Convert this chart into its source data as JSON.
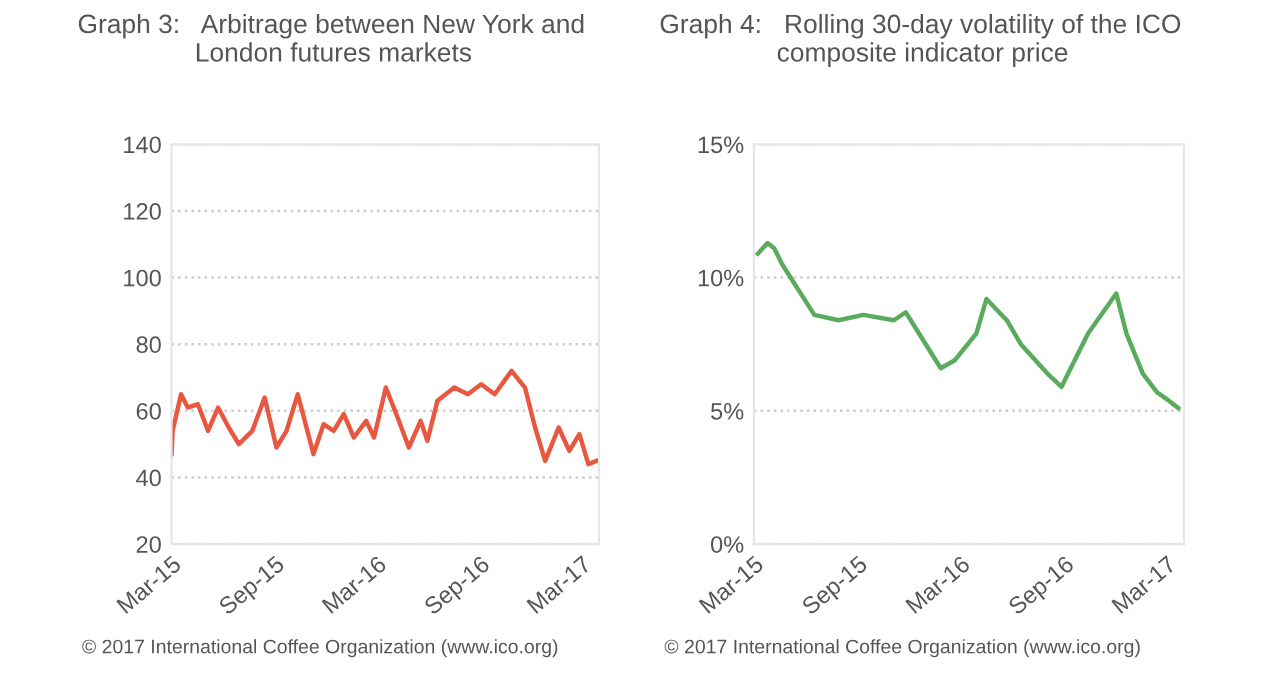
{
  "chart_data": [
    {
      "type": "line",
      "title": "Graph 3:   Arbitrage between New York and\n                London futures markets",
      "annotations": [
        "© 2017 International Coffee Organization (www.ico.org)"
      ],
      "x": [
        "2015-03-01",
        "2015-03-03",
        "2015-03-18",
        "2015-03-30",
        "2015-04-17",
        "2015-05-05",
        "2015-05-23",
        "2015-06-11",
        "2015-06-29",
        "2015-07-23",
        "2015-08-14",
        "2015-09-04",
        "2015-09-22",
        "2015-10-12",
        "2015-11-09",
        "2015-11-27",
        "2015-12-15",
        "2016-01-02",
        "2016-01-20",
        "2016-02-11",
        "2016-02-25",
        "2016-03-17",
        "2016-04-07",
        "2016-04-27",
        "2016-05-18",
        "2016-05-30",
        "2016-06-17",
        "2016-07-17",
        "2016-08-10",
        "2016-09-03",
        "2016-09-27",
        "2016-10-27",
        "2016-11-20",
        "2016-12-08",
        "2016-12-26",
        "2017-01-19",
        "2017-02-07",
        "2017-02-25",
        "2017-03-13",
        "2017-03-28"
      ],
      "series": [
        {
          "color": "#e8573f",
          "values": [
            47,
            54,
            65,
            61,
            62,
            54,
            61,
            55,
            50,
            54,
            64,
            49,
            54,
            65,
            47,
            56,
            54,
            59,
            52,
            57,
            52,
            67,
            58,
            49,
            57,
            51,
            63,
            67,
            65,
            68,
            65,
            72,
            67,
            55,
            45,
            55,
            48,
            53,
            44,
            45
          ]
        }
      ],
      "xlim": [
        "2015-03-01",
        "2017-04-01"
      ],
      "xticks": [
        {
          "value": "2015-03-01",
          "label": "Mar-15"
        },
        {
          "value": "2015-09-01",
          "label": "Sep-15"
        },
        {
          "value": "2016-03-01",
          "label": "Mar-16"
        },
        {
          "value": "2016-09-01",
          "label": "Sep-16"
        },
        {
          "value": "2017-03-01",
          "label": "Mar-17"
        }
      ],
      "ylim": [
        20,
        140
      ],
      "yticks": [
        20,
        40,
        60,
        80,
        100,
        120,
        140
      ],
      "grid": "y"
    },
    {
      "type": "line",
      "title": "Graph 4:   Rolling 30-day volatility of the ICO\n                composite indicator price",
      "annotations": [
        "© 2017 International Coffee Organization (www.ico.org)"
      ],
      "x": [
        "2015-03-08",
        "2015-03-25",
        "2015-04-06",
        "2015-04-20",
        "2015-05-29",
        "2015-06-16",
        "2015-07-29",
        "2015-09-11",
        "2015-11-04",
        "2015-11-25",
        "2016-01-26",
        "2016-02-20",
        "2016-03-29",
        "2016-04-16",
        "2016-05-22",
        "2016-06-16",
        "2016-08-02",
        "2016-08-27",
        "2016-10-13",
        "2016-12-02",
        "2016-12-20",
        "2017-01-18",
        "2017-02-12",
        "2017-03-04",
        "2017-03-22"
      ],
      "series": [
        {
          "color": "#5aab5e",
          "values": [
            10.9,
            11.3,
            11.1,
            10.5,
            9.2,
            8.6,
            8.4,
            8.6,
            8.4,
            8.7,
            6.6,
            6.9,
            7.9,
            9.2,
            8.4,
            7.5,
            6.4,
            5.9,
            7.9,
            9.4,
            7.9,
            6.4,
            5.7,
            5.4,
            5.1
          ]
        }
      ],
      "xlim": [
        "2015-03-01",
        "2017-04-01"
      ],
      "xticks": [
        {
          "value": "2015-03-01",
          "label": "Mar-15"
        },
        {
          "value": "2015-09-01",
          "label": "Sep-15"
        },
        {
          "value": "2016-03-01",
          "label": "Mar-16"
        },
        {
          "value": "2016-09-01",
          "label": "Sep-16"
        },
        {
          "value": "2017-03-01",
          "label": "Mar-17"
        }
      ],
      "ylim": [
        0,
        15
      ],
      "yticks": [
        {
          "value": 0,
          "label": "0%"
        },
        {
          "value": 5,
          "label": "5%"
        },
        {
          "value": 10,
          "label": "10%"
        },
        {
          "value": 15,
          "label": "15%"
        }
      ],
      "grid": "y"
    }
  ]
}
